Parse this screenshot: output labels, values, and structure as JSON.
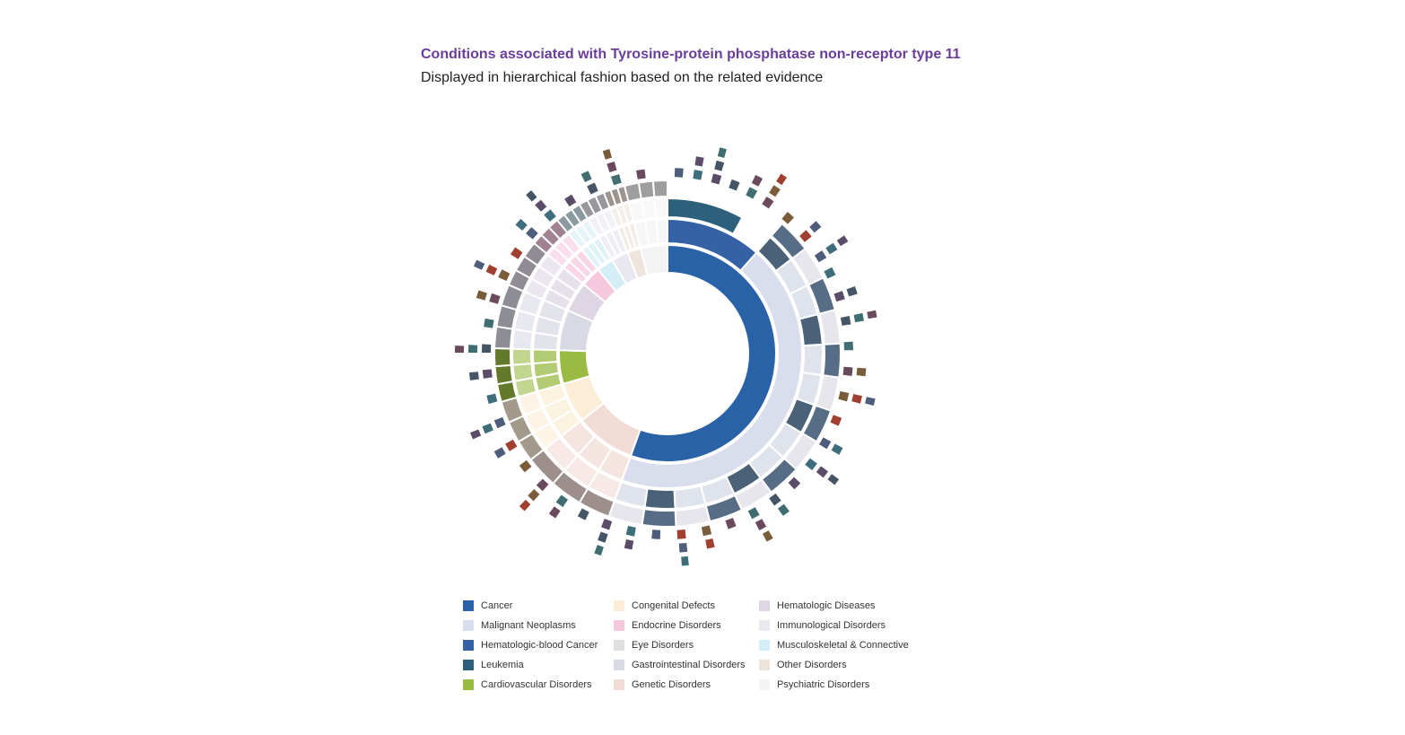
{
  "header": {
    "title": "Conditions associated with Tyrosine-protein phosphatase non-receptor type 11",
    "subtitle": "Displayed in hierarchical fashion based on the related evidence"
  },
  "legend": {
    "columns": [
      [
        {
          "label": "Cancer",
          "color": "#2a62a8"
        },
        {
          "label": "Malignant Neoplasms",
          "color": "#d8deeb"
        },
        {
          "label": "Hematologic-blood Cancer",
          "color": "#3462a5"
        },
        {
          "label": "Leukemia",
          "color": "#2d607a"
        },
        {
          "label": "Cardiovascular Disorders",
          "color": "#99bb44"
        }
      ],
      [
        {
          "label": "Congenital Defects",
          "color": "#fbedd6"
        },
        {
          "label": "Endocrine Disorders",
          "color": "#f6c8dd"
        },
        {
          "label": "Eye Disorders",
          "color": "#dfdfdf"
        },
        {
          "label": "Gastrointestinal Disorders",
          "color": "#d9d9e6"
        },
        {
          "label": "Genetic Disorders",
          "color": "#f2dcd6"
        }
      ],
      [
        {
          "label": "Hematologic Diseases",
          "color": "#ded6e4"
        },
        {
          "label": "Immunological Disorders",
          "color": "#e9e8f1"
        },
        {
          "label": "Musculoskeletal & Connective",
          "color": "#d3eef6"
        },
        {
          "label": "Other Disorders",
          "color": "#efe4dc"
        },
        {
          "label": "Psychiatric Disorders",
          "color": "#f3f3f3"
        }
      ]
    ]
  },
  "chart_data": {
    "type": "sunburst",
    "title": "Conditions associated with Tyrosine-protein phosphatase non-receptor type 11",
    "subtitle": "Displayed in hierarchical fashion based on the related evidence",
    "ring1_categories": [
      {
        "name": "Cancer",
        "share": 0.555,
        "color": "#2a62a8"
      },
      {
        "name": "Genetic Disorders",
        "share": 0.09,
        "color": "#f2dcd6"
      },
      {
        "name": "Congenital Defects",
        "share": 0.06,
        "color": "#fbedd6"
      },
      {
        "name": "Cardiovascular Disorders",
        "share": 0.05,
        "color": "#99bb44"
      },
      {
        "name": "Gastrointestinal Disorders",
        "share": 0.06,
        "color": "#d9d9e6"
      },
      {
        "name": "Hematologic Diseases",
        "share": 0.045,
        "color": "#ded6e4"
      },
      {
        "name": "Endocrine Disorders",
        "share": 0.03,
        "color": "#f6c8dd"
      },
      {
        "name": "Musculoskeletal & Connective",
        "share": 0.025,
        "color": "#d3eef6"
      },
      {
        "name": "Immunological Disorders",
        "share": 0.025,
        "color": "#e9e8f1"
      },
      {
        "name": "Other Disorders",
        "share": 0.02,
        "color": "#efe4dc"
      },
      {
        "name": "Psychiatric Disorders",
        "share": 0.04,
        "color": "#f3f3f3"
      }
    ],
    "ring2_categories": [
      {
        "name": "Hematologic-blood Cancer",
        "share": 0.115,
        "color": "#3462a5"
      },
      {
        "name": "Malignant Neoplasms",
        "share": 0.44,
        "color": "#d8deeb"
      }
    ],
    "ring3_categories": [
      {
        "name": "Leukemia",
        "share": 0.08,
        "color": "#2d607a"
      }
    ],
    "legend_position": "bottom"
  }
}
